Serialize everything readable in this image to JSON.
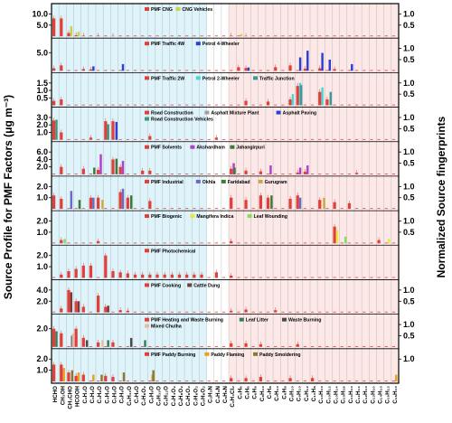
{
  "chart_data": {
    "type": "bar",
    "ylabel_left": "Source Profile for PMF Factors (μg m⁻³)",
    "ylabel_right": "Normalized Source fingerprints",
    "categories": [
      "HCHO",
      "CH₃OH",
      "CH₃CHO",
      "HCOOH",
      "C₂H₄O",
      "C₃H₆O",
      "C₄H₆O",
      "C₄H₈O",
      "C₅H₈O",
      "C₆H₆O",
      "C₆H₁₀O",
      "C₇H₈O",
      "C₇H₆O₂",
      "C₈H₈O",
      "C₈H₁₀O",
      "C₉H₁₂O",
      "C₃H₄O₂",
      "C₅H₈O₂",
      "C₆H₆O₂",
      "C₇H₈O₂",
      "C₈H₈O₂",
      "C₂H₃N",
      "C₃H₃N",
      "C₅H₅N",
      "C₂H₄Cl₂",
      "C₅H₆",
      "C₆H₆",
      "C₆H₈",
      "C₆H₁₀",
      "C₇H₈",
      "C₇H₁₀",
      "C₈H₈",
      "C₈H₁₀",
      "C₉H₁₀",
      "C₉H₁₂",
      "C₁₀H₈",
      "C₁₀H₁₀",
      "C₁₀H₁₂",
      "C₁₀H₁₄",
      "C₁₀H₁₆",
      "C₁₁H₁₀",
      "C₁₁H₁₄",
      "C₁₂H₁₀",
      "C₁₃H₁₀",
      "C₁₄H₁₀",
      "C₁₅H₁₂",
      "C₁₆H₁₀"
    ],
    "shaded_groups": [
      {
        "name": "oxygenated",
        "from": 0,
        "to": 20,
        "color": "#dff3fb"
      },
      {
        "name": "hydrocarbons",
        "from": 24,
        "to": 46,
        "color": "#fde8e8"
      }
    ],
    "panels": [
      {
        "legend": [
          {
            "name": "PMF CNG",
            "color": "#e0403a"
          },
          {
            "name": "CNG Vehicles",
            "color": "#c8d24a"
          }
        ],
        "left_ticks": [
          "10.0",
          "5.0"
        ],
        "right_ticks": [
          "1.0",
          "0.5"
        ],
        "pmf": {
          "0": 8.0,
          "1": 8.0,
          "2": 1.5,
          "3": 0.5,
          "4": 0.3,
          "6": 0.3,
          "8": 0.2,
          "24": 0.3,
          "26": 0.2
        },
        "fingerprints": [
          {
            "color": "#c8d24a",
            "values": {
              "2": 0.45,
              "3": 0.2,
              "25": 0.1
            }
          }
        ]
      },
      {
        "legend": [
          {
            "name": "PMF Traffic 4W",
            "color": "#e0403a"
          },
          {
            "name": "Petrol 4-Wheeler",
            "color": "#2b3ed6"
          }
        ],
        "left_ticks": [
          "5.0"
        ],
        "right_ticks": [
          "1.0",
          "0.5"
        ],
        "pmf": {
          "0": 0.7,
          "1": 1.5,
          "4": 0.5,
          "5": 0.4,
          "25": 1.0,
          "26": 0.8,
          "30": 1.0,
          "32": 1.5,
          "34": 0.6,
          "36": 0.7,
          "38": 0.5
        },
        "fingerprints": [
          {
            "color": "#2b3ed6",
            "values": {
              "5": 0.2,
              "9": 0.3,
              "26": 0.15,
              "33": 0.6,
              "34": 0.9,
              "36": 0.8,
              "37": 0.5,
              "40": 0.3
            }
          }
        ]
      },
      {
        "legend": [
          {
            "name": "PMF Traffic 2W",
            "color": "#e0403a"
          },
          {
            "name": "Petrol 2-Wheeler",
            "color": "#48d6d6"
          },
          {
            "name": "Traffic Junction",
            "color": "#3a9a9a"
          }
        ],
        "left_ticks": [
          "1.5",
          "1.0",
          "0.5"
        ],
        "right_ticks": [
          "1.0",
          "0.5"
        ],
        "pmf": {
          "0": 0.3,
          "1": 0.4,
          "26": 0.3,
          "29": 0.25,
          "32": 0.4,
          "33": 1.3,
          "36": 0.9,
          "37": 0.4
        },
        "fingerprints": [
          {
            "color": "#48d6d6",
            "values": {
              "32": 0.5,
              "33": 1.0,
              "36": 0.8
            }
          },
          {
            "color": "#3a9a9a",
            "values": {
              "33": 0.9,
              "37": 0.6
            }
          }
        ]
      },
      {
        "legend": [
          {
            "name": "Road Construction",
            "color": "#e0403a"
          },
          {
            "name": "Asphalt Mixture Plant",
            "color": "#a0a0a0"
          },
          {
            "name": "Asphalt Paving",
            "color": "#2b3ed6"
          },
          {
            "name": "Road Construction Vehicles",
            "color": "#3a9a7a"
          }
        ],
        "left_ticks": [
          "3.0",
          "2.0",
          "1.0"
        ],
        "right_ticks": [
          "1.0",
          "0.5"
        ],
        "pmf": {
          "0": 2.6,
          "1": 1.0,
          "5": 0.3,
          "7": 2.5,
          "8": 2.5,
          "13": 0.5,
          "22": 0.3
        },
        "fingerprints": [
          {
            "color": "#3a9a7a",
            "values": {
              "0": 0.9,
              "7": 0.7
            }
          },
          {
            "color": "#2b3ed6",
            "values": {
              "8": 0.8
            }
          }
        ]
      },
      {
        "legend": [
          {
            "name": "PMF Solvents",
            "color": "#e0403a"
          },
          {
            "name": "Akshardham",
            "color": "#b040c8"
          },
          {
            "name": "Jahangirpuri",
            "color": "#3a7a3a"
          }
        ],
        "left_ticks": [
          "6.0",
          "4.0",
          "2.0"
        ],
        "right_ticks": [
          "1.0",
          "0.5"
        ],
        "pmf": {
          "1": 2.0,
          "4": 1.5,
          "6": 1.2,
          "8": 4.0,
          "9": 2.0,
          "12": 1.0,
          "13": 1.0,
          "24": 1.5,
          "26": 1.0,
          "28": 0.8,
          "33": 0.5,
          "34": 0.7,
          "41": 0.4
        },
        "fingerprints": [
          {
            "color": "#b040c8",
            "values": {
              "6": 0.9,
              "9": 0.6,
              "24": 0.5,
              "29": 0.4,
              "33": 0.3,
              "34": 0.4
            }
          },
          {
            "color": "#3a7a3a",
            "values": {
              "5": 0.3,
              "8": 0.7,
              "24": 0.3
            }
          }
        ]
      },
      {
        "legend": [
          {
            "name": "PMF Industrial",
            "color": "#e0403a"
          },
          {
            "name": "Okhla",
            "color": "#6a6ac8"
          },
          {
            "name": "Faridabad",
            "color": "#3a7a3a"
          },
          {
            "name": "Gurugram",
            "color": "#c8a840"
          }
        ],
        "left_ticks": [
          "2.0",
          "1.0"
        ],
        "right_ticks": [
          "1.0",
          "0.5"
        ],
        "pmf": {
          "0": 1.2,
          "1": 0.9,
          "5": 1.0,
          "6": 1.0,
          "9": 1.5,
          "10": 1.0,
          "13": 0.7,
          "24": 1.0,
          "26": 0.8,
          "28": 1.2,
          "29": 1.0,
          "32": 0.9,
          "33": 1.2,
          "36": 0.8,
          "38": 0.6,
          "40": 0.5
        },
        "fingerprints": [
          {
            "color": "#6a6ac8",
            "values": {
              "2": 0.8,
              "5": 0.5,
              "9": 0.9,
              "33": 0.5
            }
          },
          {
            "color": "#3a7a3a",
            "values": {
              "3": 0.4,
              "10": 0.6,
              "29": 0.6
            }
          },
          {
            "color": "#c8a840",
            "values": {
              "6": 0.4,
              "36": 0.5
            }
          }
        ]
      },
      {
        "legend": [
          {
            "name": "PMF Biogenic",
            "color": "#e0403a"
          },
          {
            "name": "Mangifera Indica",
            "color": "#e8e840"
          },
          {
            "name": "Leaf Wounding",
            "color": "#80e060"
          }
        ],
        "left_ticks": [
          "2.0",
          "1.0"
        ],
        "right_ticks": [
          "1.0",
          "0.5"
        ],
        "pmf": {
          "1": 0.3,
          "6": 0.2,
          "24": 0.2,
          "38": 1.5,
          "44": 0.3
        },
        "fingerprints": [
          {
            "color": "#e8e840",
            "values": {
              "38": 0.6,
              "45": 0.2
            }
          },
          {
            "color": "#80e060",
            "values": {
              "1": 0.2,
              "39": 0.3
            }
          }
        ]
      },
      {
        "legend": [
          {
            "name": "PMF Photochemical",
            "color": "#e0403a"
          }
        ],
        "left_ticks": [
          "2.0",
          "1.0"
        ],
        "right_ticks": [],
        "pmf": {
          "1": 0.3,
          "2": 0.6,
          "3": 0.8,
          "4": 1.1,
          "5": 1.1,
          "7": 2.0,
          "8": 0.6,
          "9": 0.5,
          "10": 0.4,
          "11": 0.3,
          "12": 0.3,
          "13": 0.3,
          "14": 0.3,
          "15": 0.3,
          "16": 0.3,
          "17": 0.3,
          "18": 0.3,
          "19": 0.3,
          "20": 0.3,
          "22": 0.5,
          "24": 0.2
        },
        "fingerprints": []
      },
      {
        "legend": [
          {
            "name": "PMF Cooking",
            "color": "#e0403a"
          },
          {
            "name": "Cattle Dung",
            "color": "#7a3a3a"
          }
        ],
        "left_ticks": [
          "4.0",
          "2.0"
        ],
        "right_ticks": [
          "1.0",
          "0.5"
        ],
        "pmf": {
          "1": 0.7,
          "2": 4.0,
          "3": 2.0,
          "4": 1.0,
          "6": 3.0,
          "7": 1.0,
          "9": 0.4,
          "10": 0.3,
          "24": 0.3,
          "26": 0.5,
          "30": 0.4
        },
        "fingerprints": [
          {
            "color": "#7a3a3a",
            "values": {
              "2": 0.9,
              "3": 0.5,
              "7": 0.3
            }
          }
        ]
      },
      {
        "legend": [
          {
            "name": "PMF Heating and Waste Burning",
            "color": "#e0403a"
          },
          {
            "name": "Leaf Litter",
            "color": "#3a7a5a"
          },
          {
            "name": "Waste Burning",
            "color": "#4a4a4a"
          },
          {
            "name": "Mixed Chulha",
            "color": "#e8b8a8"
          }
        ],
        "left_ticks": [
          "2.0"
        ],
        "right_ticks": [
          "1.0",
          "0.5"
        ],
        "pmf": {
          "0": 2.0,
          "1": 1.5,
          "3": 2.0,
          "4": 1.0,
          "6": 0.5,
          "8": 0.5,
          "24": 0.4,
          "26": 0.4,
          "28": 0.3,
          "33": 0.3
        },
        "fingerprints": [
          {
            "color": "#3a7a5a",
            "values": {
              "0": 0.7,
              "7": 0.3,
              "12": 0.3
            }
          },
          {
            "color": "#4a4a4a",
            "values": {
              "2": 0.5,
              "4": 0.3,
              "10": 0.4
            }
          },
          {
            "color": "#e8b8a8",
            "values": {
              "2": 0.6,
              "6": 0.3
            }
          }
        ]
      },
      {
        "legend": [
          {
            "name": "PMF Paddy Burning",
            "color": "#e0403a"
          },
          {
            "name": "Paddy Flaming",
            "color": "#e8a020"
          },
          {
            "name": "Paddy Smoldering",
            "color": "#8a7a30"
          }
        ],
        "left_ticks": [
          "2.0",
          "1.0"
        ],
        "right_ticks": [
          "1.0"
        ],
        "pmf": {
          "0": 1.5,
          "1": 1.5,
          "2": 0.8,
          "3": 0.5,
          "4": 0.6,
          "7": 0.5,
          "8": 0.4,
          "24": 0.3,
          "26": 0.3,
          "28": 0.4,
          "32": 0.3,
          "35": 0.3
        },
        "fingerprints": [
          {
            "color": "#e8a020",
            "values": {
              "1": 0.6,
              "3": 0.4,
              "5": 0.3,
              "13": 0.3,
              "46": 0.3
            }
          },
          {
            "color": "#8a7a30",
            "values": {
              "2": 0.5,
              "6": 0.3,
              "9": 0.4,
              "13": 0.5
            }
          }
        ]
      }
    ]
  }
}
